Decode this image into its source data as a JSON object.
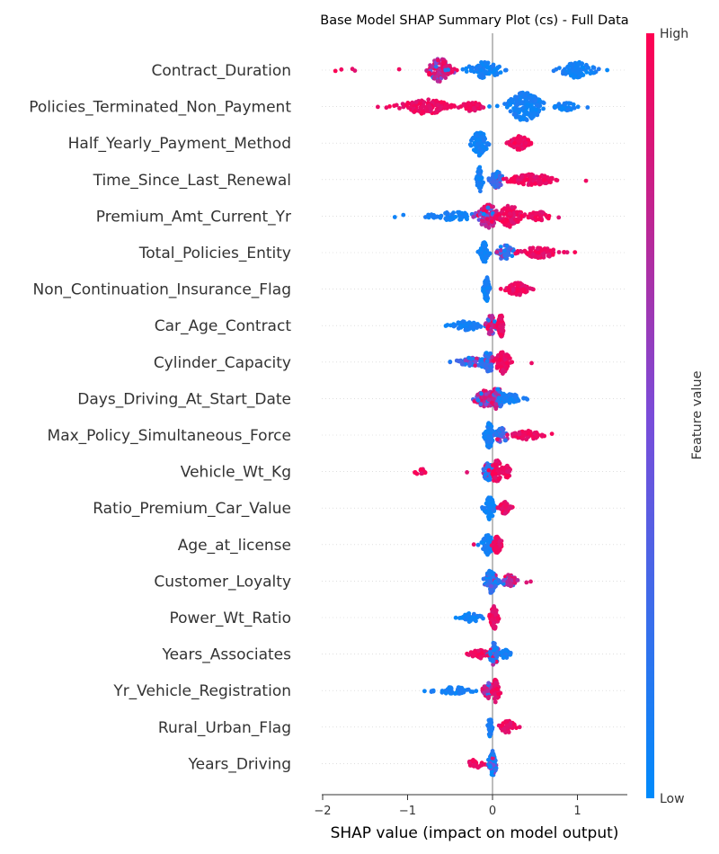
{
  "chart_data": {
    "type": "scatter",
    "subtype": "shap-beeswarm",
    "title": "Base Model SHAP Summary Plot (cs) - Full Data",
    "xlabel": "SHAP value (impact on model output)",
    "xlim": [
      -2.1,
      1.5
    ],
    "xticks": [
      -2,
      -1,
      0,
      1
    ],
    "grid": false,
    "colorbar": {
      "title": "Feature value",
      "high_label": "High",
      "low_label": "Low",
      "low_color": "#008bfb",
      "high_color": "#ff0051"
    },
    "features": [
      {
        "name": "Contract_Duration",
        "low_side": "positive",
        "min": -1.9,
        "max": 1.4,
        "clusters": [
          {
            "center": -0.62,
            "spread": 0.12,
            "width": 13,
            "n": 130,
            "color": "mix"
          },
          {
            "center": -0.1,
            "spread": 0.18,
            "width": 9,
            "n": 90,
            "color": "low"
          },
          {
            "center": 1.0,
            "spread": 0.18,
            "width": 9,
            "n": 90,
            "color": "low"
          }
        ],
        "outliers": [
          -1.85,
          -1.78,
          -1.65,
          -1.62,
          -1.1,
          -0.45,
          0.72,
          1.35
        ]
      },
      {
        "name": "Policies_Terminated_Non_Payment",
        "low_side": "positive",
        "min": -1.35,
        "max": 1.15,
        "clusters": [
          {
            "center": -0.78,
            "spread": 0.25,
            "width": 8,
            "n": 140,
            "color": "high"
          },
          {
            "center": -0.25,
            "spread": 0.12,
            "width": 5,
            "n": 40,
            "color": "high"
          },
          {
            "center": 0.38,
            "spread": 0.18,
            "width": 16,
            "n": 170,
            "color": "low"
          },
          {
            "center": 0.85,
            "spread": 0.12,
            "width": 5,
            "n": 35,
            "color": "low"
          }
        ],
        "outliers": [
          -1.35,
          -1.25,
          1.12
        ]
      },
      {
        "name": "Half_Yearly_Payment_Method",
        "low_side": "negative",
        "min": -0.4,
        "max": 0.6,
        "clusters": [
          {
            "center": -0.15,
            "spread": 0.08,
            "width": 14,
            "n": 90,
            "color": "low"
          },
          {
            "center": 0.32,
            "spread": 0.1,
            "width": 8,
            "n": 80,
            "color": "high"
          }
        ],
        "outliers": []
      },
      {
        "name": "Time_Since_Last_Renewal",
        "low_side": "negative",
        "min": -0.22,
        "max": 1.12,
        "clusters": [
          {
            "center": -0.15,
            "spread": 0.03,
            "width": 14,
            "n": 60,
            "color": "low"
          },
          {
            "center": 0.05,
            "spread": 0.06,
            "width": 10,
            "n": 50,
            "color": "mix"
          },
          {
            "center": 0.45,
            "spread": 0.25,
            "width": 6,
            "n": 120,
            "color": "high"
          }
        ],
        "outliers": [
          1.1
        ]
      },
      {
        "name": "Premium_Amt_Current_Yr",
        "low_side": "negative",
        "min": -1.15,
        "max": 0.8,
        "clusters": [
          {
            "center": -0.45,
            "spread": 0.25,
            "width": 5,
            "n": 60,
            "color": "low"
          },
          {
            "center": -0.05,
            "spread": 0.12,
            "width": 13,
            "n": 110,
            "color": "mix"
          },
          {
            "center": 0.2,
            "spread": 0.12,
            "width": 12,
            "n": 90,
            "color": "high"
          },
          {
            "center": 0.55,
            "spread": 0.12,
            "width": 5,
            "n": 40,
            "color": "high"
          }
        ],
        "outliers": [
          -1.15,
          -1.05,
          0.78
        ]
      },
      {
        "name": "Total_Policies_Entity",
        "low_side": "negative",
        "min": -0.22,
        "max": 0.98,
        "clusters": [
          {
            "center": -0.1,
            "spread": 0.04,
            "width": 12,
            "n": 60,
            "color": "low"
          },
          {
            "center": 0.15,
            "spread": 0.1,
            "width": 8,
            "n": 45,
            "color": "mix"
          },
          {
            "center": 0.55,
            "spread": 0.2,
            "width": 6,
            "n": 90,
            "color": "high"
          }
        ],
        "outliers": [
          0.97
        ]
      },
      {
        "name": "Non_Continuation_Insurance_Flag",
        "low_side": "negative",
        "min": -0.12,
        "max": 0.55,
        "clusters": [
          {
            "center": -0.07,
            "spread": 0.03,
            "width": 14,
            "n": 50,
            "color": "low"
          },
          {
            "center": 0.3,
            "spread": 0.12,
            "width": 7,
            "n": 70,
            "color": "high"
          }
        ],
        "outliers": []
      },
      {
        "name": "Car_Age_Contract",
        "low_side": "negative",
        "min": -0.55,
        "max": 0.16,
        "clusters": [
          {
            "center": -0.3,
            "spread": 0.15,
            "width": 5,
            "n": 60,
            "color": "low"
          },
          {
            "center": -0.02,
            "spread": 0.05,
            "width": 12,
            "n": 50,
            "color": "mix"
          },
          {
            "center": 0.1,
            "spread": 0.03,
            "width": 13,
            "n": 60,
            "color": "high"
          }
        ],
        "outliers": [
          -0.55
        ]
      },
      {
        "name": "Cylinder_Capacity",
        "low_side": "negative",
        "min": -0.5,
        "max": 0.48,
        "clusters": [
          {
            "center": -0.25,
            "spread": 0.15,
            "width": 5,
            "n": 50,
            "color": "mix"
          },
          {
            "center": -0.05,
            "spread": 0.08,
            "width": 11,
            "n": 70,
            "color": "mix"
          },
          {
            "center": 0.12,
            "spread": 0.08,
            "width": 13,
            "n": 80,
            "color": "high"
          }
        ],
        "outliers": [
          -0.5,
          0.46
        ]
      },
      {
        "name": "Days_Driving_At_Start_Date",
        "low_side": "positive",
        "min": -0.3,
        "max": 0.42,
        "clusters": [
          {
            "center": -0.08,
            "spread": 0.12,
            "width": 9,
            "n": 80,
            "color": "mix"
          },
          {
            "center": 0.05,
            "spread": 0.08,
            "width": 12,
            "n": 70,
            "color": "mix"
          },
          {
            "center": 0.22,
            "spread": 0.1,
            "width": 5,
            "n": 50,
            "color": "low"
          }
        ],
        "outliers": [
          0.41
        ]
      },
      {
        "name": "Max_Policy_Simultaneous_Force",
        "low_side": "negative",
        "min": -0.1,
        "max": 0.72,
        "clusters": [
          {
            "center": -0.04,
            "spread": 0.04,
            "width": 15,
            "n": 70,
            "color": "low"
          },
          {
            "center": 0.1,
            "spread": 0.08,
            "width": 9,
            "n": 40,
            "color": "mix"
          },
          {
            "center": 0.4,
            "spread": 0.15,
            "width": 5,
            "n": 60,
            "color": "high"
          }
        ],
        "outliers": [
          0.7
        ]
      },
      {
        "name": "Vehicle_Wt_Kg",
        "low_side": "positive",
        "min": -0.95,
        "max": 0.24,
        "clusters": [
          {
            "center": -0.85,
            "spread": 0.06,
            "width": 4,
            "n": 15,
            "color": "high"
          },
          {
            "center": -0.05,
            "spread": 0.06,
            "width": 10,
            "n": 60,
            "color": "mix"
          },
          {
            "center": 0.05,
            "spread": 0.06,
            "width": 13,
            "n": 60,
            "color": "high"
          },
          {
            "center": 0.17,
            "spread": 0.04,
            "width": 7,
            "n": 25,
            "color": "high"
          }
        ],
        "outliers": [
          -0.3
        ]
      },
      {
        "name": "Ratio_Premium_Car_Value",
        "low_side": "negative",
        "min": -0.18,
        "max": 0.26,
        "clusters": [
          {
            "center": -0.03,
            "spread": 0.05,
            "width": 13,
            "n": 70,
            "color": "low"
          },
          {
            "center": 0.15,
            "spread": 0.06,
            "width": 7,
            "n": 50,
            "color": "high"
          }
        ],
        "outliers": []
      },
      {
        "name": "Age_at_license",
        "low_side": "positive",
        "min": -0.22,
        "max": 0.2,
        "clusters": [
          {
            "center": -0.05,
            "spread": 0.06,
            "width": 12,
            "n": 70,
            "color": "low"
          },
          {
            "center": 0.06,
            "spread": 0.05,
            "width": 10,
            "n": 50,
            "color": "high"
          }
        ],
        "outliers": [
          -0.22
        ]
      },
      {
        "name": "Customer_Loyalty",
        "low_side": "negative",
        "min": -0.15,
        "max": 0.47,
        "clusters": [
          {
            "center": -0.02,
            "spread": 0.06,
            "width": 13,
            "n": 80,
            "color": "mix"
          },
          {
            "center": 0.2,
            "spread": 0.08,
            "width": 7,
            "n": 40,
            "color": "mix"
          }
        ],
        "outliers": [
          0.45,
          0.4
        ]
      },
      {
        "name": "Power_Wt_Ratio",
        "low_side": "negative",
        "min": -0.45,
        "max": 0.12,
        "clusters": [
          {
            "center": -0.25,
            "spread": 0.1,
            "width": 5,
            "n": 40,
            "color": "low"
          },
          {
            "center": 0.02,
            "spread": 0.04,
            "width": 13,
            "n": 60,
            "color": "high"
          }
        ],
        "outliers": []
      },
      {
        "name": "Years_Associates",
        "low_side": "positive",
        "min": -0.3,
        "max": 0.22,
        "clusters": [
          {
            "center": -0.15,
            "spread": 0.1,
            "width": 5,
            "n": 35,
            "color": "high"
          },
          {
            "center": 0.02,
            "spread": 0.05,
            "width": 13,
            "n": 70,
            "color": "mix"
          },
          {
            "center": 0.15,
            "spread": 0.05,
            "width": 5,
            "n": 20,
            "color": "low"
          }
        ],
        "outliers": []
      },
      {
        "name": "Yr_Vehicle_Registration",
        "low_side": "negative",
        "min": -0.8,
        "max": 0.12,
        "clusters": [
          {
            "center": -0.45,
            "spread": 0.2,
            "width": 4,
            "n": 50,
            "color": "low"
          },
          {
            "center": -0.05,
            "spread": 0.05,
            "width": 9,
            "n": 40,
            "color": "mix"
          },
          {
            "center": 0.04,
            "spread": 0.04,
            "width": 13,
            "n": 50,
            "color": "high"
          }
        ],
        "outliers": [
          -0.8,
          -0.72
        ]
      },
      {
        "name": "Rural_Urban_Flag",
        "low_side": "negative",
        "min": -0.06,
        "max": 0.36,
        "clusters": [
          {
            "center": -0.03,
            "spread": 0.02,
            "width": 12,
            "n": 40,
            "color": "low"
          },
          {
            "center": 0.18,
            "spread": 0.08,
            "width": 7,
            "n": 45,
            "color": "high"
          }
        ],
        "outliers": []
      },
      {
        "name": "Years_Driving",
        "low_side": "positive",
        "min": -0.35,
        "max": 0.1,
        "clusters": [
          {
            "center": -0.2,
            "spread": 0.08,
            "width": 5,
            "n": 30,
            "color": "high"
          },
          {
            "center": 0.0,
            "spread": 0.04,
            "width": 14,
            "n": 70,
            "color": "mix"
          }
        ],
        "outliers": []
      }
    ]
  }
}
